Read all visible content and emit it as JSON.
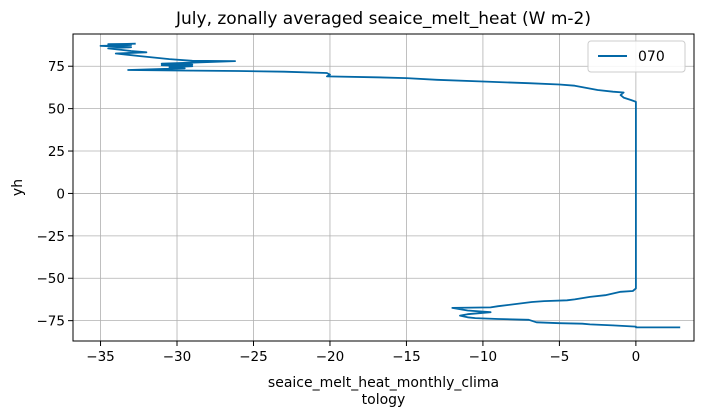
{
  "chart_data": {
    "type": "line",
    "title": "July, zonally averaged seaice_melt_heat (W m-2)",
    "xlabel_lines": [
      "seaice_melt_heat_monthly_clima",
      "tology"
    ],
    "ylabel": "yh",
    "xlim": [
      -36.8,
      3.8
    ],
    "ylim": [
      -87,
      94
    ],
    "xticks": [
      -35,
      -30,
      -25,
      -20,
      -15,
      -10,
      -5,
      0
    ],
    "xtick_labels": [
      "−35",
      "−30",
      "−25",
      "−20",
      "−15",
      "−10",
      "−5",
      "0"
    ],
    "yticks": [
      -75,
      -50,
      -25,
      0,
      25,
      50,
      75
    ],
    "ytick_labels": [
      "−75",
      "−50",
      "−25",
      "0",
      "25",
      "50",
      "75"
    ],
    "grid": true,
    "legend_position": "top-right",
    "series": [
      {
        "name": "070",
        "color": "#0368a6",
        "x": [
          2.9,
          0.0,
          0.0,
          -1.5,
          -3.0,
          -3.5,
          -5.0,
          -6.5,
          -7.0,
          -9.0,
          -10.5,
          -11.0,
          -11.5,
          -11.0,
          -9.5,
          -11.0,
          -12.0,
          -9.5,
          -9.0,
          -6.8,
          -6.0,
          -4.5,
          -4.0,
          -3.0,
          -2.0,
          -1.0,
          -0.2,
          0.0,
          0.0,
          0.0,
          0.0,
          0.0,
          0.0,
          -0.3,
          -0.8,
          -1.0,
          -0.8,
          -1.5,
          -2.5,
          -4.0,
          -5.0,
          -7.0,
          -10.0,
          -13.0,
          -15.0,
          -17.0,
          -20.2,
          -20.0,
          -20.2,
          -23.0,
          -26.0,
          -30.0,
          -33.2,
          -29.5,
          -30.5,
          -29.0,
          -31.0,
          -29.0,
          -31.0,
          -26.2,
          -29.0,
          -30.5,
          -32.5,
          -34.0,
          -32.0,
          -33.0,
          -34.5,
          -33.0,
          -35.0,
          -33.0,
          -34.5,
          -32.7
        ],
        "y": [
          -79.0,
          -79.0,
          -78.5,
          -77.8,
          -77.2,
          -76.8,
          -76.5,
          -76.0,
          -74.5,
          -74.0,
          -73.5,
          -73.0,
          -72.0,
          -71.2,
          -70.0,
          -69.0,
          -67.5,
          -67.2,
          -66.5,
          -64.0,
          -63.5,
          -63.0,
          -62.5,
          -61.0,
          -60.0,
          -58.0,
          -57.5,
          -56.0,
          -50.0,
          0.0,
          25.0,
          50.0,
          54.0,
          55.0,
          56.5,
          58.0,
          59.5,
          60.0,
          61.0,
          63.5,
          64.2,
          65.0,
          66.0,
          67.0,
          68.0,
          68.5,
          69.0,
          70.0,
          71.0,
          71.8,
          72.2,
          72.5,
          72.8,
          73.8,
          74.5,
          75.0,
          75.6,
          76.0,
          76.5,
          78.0,
          78.2,
          79.2,
          81.0,
          82.5,
          83.2,
          84.0,
          85.5,
          86.2,
          87.0,
          87.5,
          88.0,
          88.3
        ]
      }
    ]
  }
}
